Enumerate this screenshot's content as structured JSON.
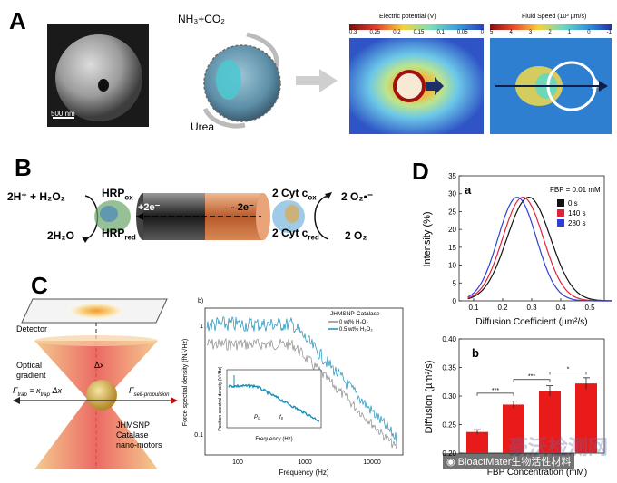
{
  "panels": {
    "A": {
      "letter": "A",
      "sem_scale": "500 nm",
      "gas_label": "NH₃+CO₂",
      "urea_label": "Urea",
      "potential_title": "Electric potential (V)",
      "potential_ticks": [
        "0.3",
        "0.25",
        "0.2",
        "0.15",
        "0.1",
        "0.05",
        "0"
      ],
      "speed_title": "Fluid Speed  (10³ µm/s)",
      "speed_ticks": [
        "5",
        "4",
        "3",
        "2",
        "1",
        "0",
        "-1"
      ]
    },
    "B": {
      "letter": "B",
      "left_top": "2H⁺ + H₂O₂",
      "left_bottom": "2H₂O",
      "hrp_ox": "HRP",
      "hrp_ox_sub": "ox",
      "hrp_red": "HRP",
      "hrp_red_sub": "red",
      "plus_e": "+2e⁻",
      "minus_e": "- 2e⁻",
      "cyt_ox": "2 Cyt c",
      "cyt_ox_sub": "ox",
      "cyt_red": "2 Cyt c",
      "cyt_red_sub": "red",
      "right_top": "2 O₂•⁻",
      "right_bottom": "2 O₂"
    },
    "C": {
      "letter": "C",
      "detector": "Detector",
      "optical_gradient": "Optical\ngradient",
      "delta_x": "Δx",
      "f_trap": "F",
      "f_trap_sub": "trap",
      "f_trap_eq": " = κ",
      "f_trap_eq_sub": "trap",
      "f_trap_tail": " Δx",
      "f_self": "F",
      "f_self_sub": "self-propulsion",
      "motor_label": "JHMSNP\nCatalase\nnano-motors",
      "chart_label": "b)",
      "legend_title": "JHMSNP-Catalase",
      "legend_0": "0 wt% H₂O₂",
      "legend_1": "0.5 wt% H₂O₂",
      "ylabel": "Force spectral density (fN/√Hz)",
      "xlabel": "Frequency (Hz)",
      "inset_ylabel": "Position spectral density (V²/Hz)",
      "inset_xlabel": "Frequency (Hz)",
      "p0": "P₀",
      "f0": "f₀"
    },
    "D": {
      "letter": "D",
      "sub_a": "a",
      "sub_b": "b",
      "fbp": "FBP = 0.01 mM",
      "legend": [
        "0 s",
        "140 s",
        "280 s"
      ]
    }
  },
  "chart_data": [
    {
      "id": "C-b",
      "type": "line",
      "title": "",
      "xlabel": "Frequency (Hz)",
      "ylabel": "Force spectral density (fN/√Hz)",
      "xscale": "log",
      "yscale": "log",
      "x_ticks": [
        "100",
        "1000",
        "10000"
      ],
      "y_ticks": [
        "0.1",
        "1"
      ],
      "series": [
        {
          "name": "0 wt% H₂O₂",
          "color": "#8a8a8a"
        },
        {
          "name": "0.5 wt% H₂O₂",
          "color": "#1a8fb8"
        }
      ]
    },
    {
      "id": "D-a",
      "type": "line",
      "title": "",
      "xlabel": "Diffusion Coefficient (µm²/s)",
      "ylabel": "Intensity (%)",
      "xlim": [
        0.05,
        0.55
      ],
      "ylim": [
        0,
        35
      ],
      "x_ticks": [
        0.1,
        0.2,
        0.3,
        0.4,
        0.5
      ],
      "y_ticks": [
        0,
        5,
        10,
        15,
        20,
        25,
        30,
        35
      ],
      "series": [
        {
          "name": "0 s",
          "color": "#111111",
          "peak_x": 0.29,
          "peak_y": 29,
          "sigma": 0.075
        },
        {
          "name": "140 s",
          "color": "#e0233a",
          "peak_x": 0.27,
          "peak_y": 29,
          "sigma": 0.07
        },
        {
          "name": "280 s",
          "color": "#2f3fd6",
          "peak_x": 0.25,
          "peak_y": 29,
          "sigma": 0.066
        }
      ]
    },
    {
      "id": "D-b",
      "type": "bar",
      "title": "",
      "xlabel": "FBP Concentration (mM)",
      "ylabel": "Diffusion (µm²/s)",
      "ylim": [
        0.2,
        0.4
      ],
      "y_ticks": [
        "0.20",
        "0.25",
        "0.30",
        "0.35",
        "0.40"
      ],
      "values": [
        0.237,
        0.285,
        0.309,
        0.322
      ],
      "errors": [
        0.004,
        0.006,
        0.009,
        0.01
      ],
      "significance": [
        "***",
        "***",
        "*"
      ],
      "color": "#e81a1a"
    }
  ],
  "watermark": "BioactMater生物活性材料",
  "watermark_stamp": "豪沃检测网"
}
